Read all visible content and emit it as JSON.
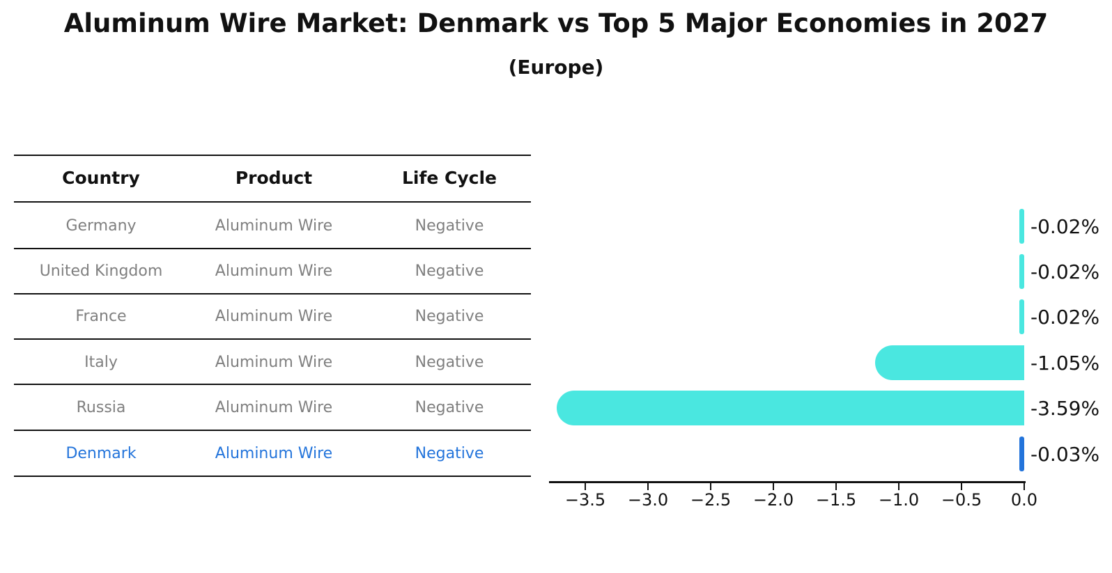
{
  "title": "Aluminum Wire Market: Denmark vs Top 5 Major Economies in 2027",
  "subtitle": "(Europe)",
  "table": {
    "headers": [
      "Country",
      "Product",
      "Life Cycle"
    ],
    "rows": [
      {
        "country": "Germany",
        "product": "Aluminum Wire",
        "life_cycle": "Negative"
      },
      {
        "country": "United Kingdom",
        "product": "Aluminum Wire",
        "life_cycle": "Negative"
      },
      {
        "country": "France",
        "product": "Aluminum Wire",
        "life_cycle": "Negative"
      },
      {
        "country": "Italy",
        "product": "Aluminum Wire",
        "life_cycle": "Negative"
      },
      {
        "country": "Russia",
        "product": "Aluminum Wire",
        "life_cycle": "Negative"
      },
      {
        "country": "Denmark",
        "product": "Aluminum Wire",
        "life_cycle": "Negative"
      }
    ]
  },
  "chart_data": {
    "type": "bar",
    "orientation": "horizontal",
    "categories": [
      "Germany",
      "United Kingdom",
      "France",
      "Italy",
      "Russia",
      "Denmark"
    ],
    "values": [
      -0.02,
      -0.02,
      -0.02,
      -1.05,
      -3.59,
      -0.03
    ],
    "labels": [
      "-0.02%",
      "-0.02%",
      "-0.02%",
      "-1.05%",
      "-3.59%",
      "-0.03%"
    ],
    "xticks": [
      "−3.5",
      "−3.0",
      "−2.5",
      "−2.0",
      "−1.5",
      "−1.0",
      "−0.5",
      "0.0"
    ],
    "xlim": [
      -3.79,
      0
    ],
    "ylabel": "",
    "xlabel": "",
    "gridlines": false,
    "legend": false,
    "bar_color": "#4AE7E0",
    "highlight_color": "#2374DB",
    "highlight_index": 5,
    "text_color_rows": "#7f7f7f"
  }
}
